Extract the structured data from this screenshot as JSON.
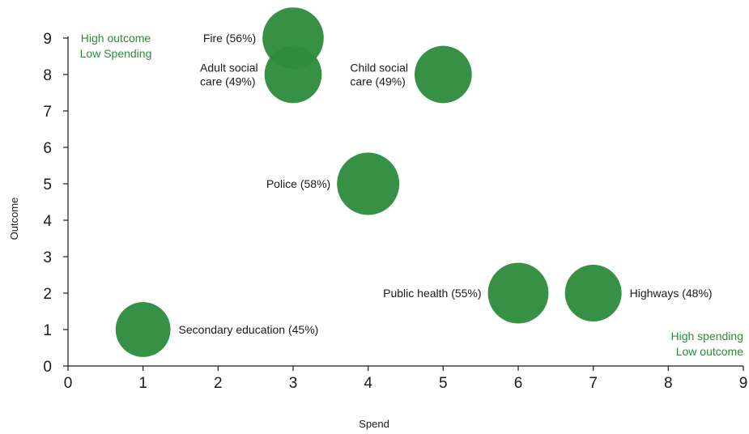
{
  "chart_data": {
    "type": "scatter",
    "xlabel": "Spend",
    "ylabel": "Outcome",
    "xlim": [
      0,
      9
    ],
    "ylim": [
      0,
      9
    ],
    "x_ticks": [
      0,
      1,
      2,
      3,
      4,
      5,
      6,
      7,
      8,
      9
    ],
    "y_ticks": [
      0,
      1,
      2,
      3,
      4,
      5,
      6,
      7,
      8,
      9
    ],
    "grid": false,
    "colors": {
      "bubble": "#2e8b3d",
      "annotation": "#2e8b3d"
    },
    "points": [
      {
        "label_lines": [
          "Secondary education (45%)"
        ],
        "x": 1,
        "y": 1,
        "size": 45,
        "label_side": "right"
      },
      {
        "label_lines": [
          "Fire (56%)"
        ],
        "x": 3,
        "y": 9,
        "size": 56,
        "label_side": "left"
      },
      {
        "label_lines": [
          "Adult social",
          "care (49%)"
        ],
        "x": 3,
        "y": 8,
        "size": 49,
        "label_side": "left"
      },
      {
        "label_lines": [
          "Police (58%)"
        ],
        "x": 4,
        "y": 5,
        "size": 58,
        "label_side": "left"
      },
      {
        "label_lines": [
          "Child social",
          "care (49%)"
        ],
        "x": 5,
        "y": 8,
        "size": 49,
        "label_side": "left"
      },
      {
        "label_lines": [
          "Public health (55%)"
        ],
        "x": 6,
        "y": 2,
        "size": 55,
        "label_side": "left"
      },
      {
        "label_lines": [
          "Highways (48%)"
        ],
        "x": 7,
        "y": 2,
        "size": 48,
        "label_side": "right"
      }
    ],
    "annotations": [
      {
        "lines": [
          "High outcome",
          "Low Spending"
        ],
        "position": "top-left"
      },
      {
        "lines": [
          "High spending",
          "Low outcome"
        ],
        "position": "bottom-right"
      }
    ]
  }
}
